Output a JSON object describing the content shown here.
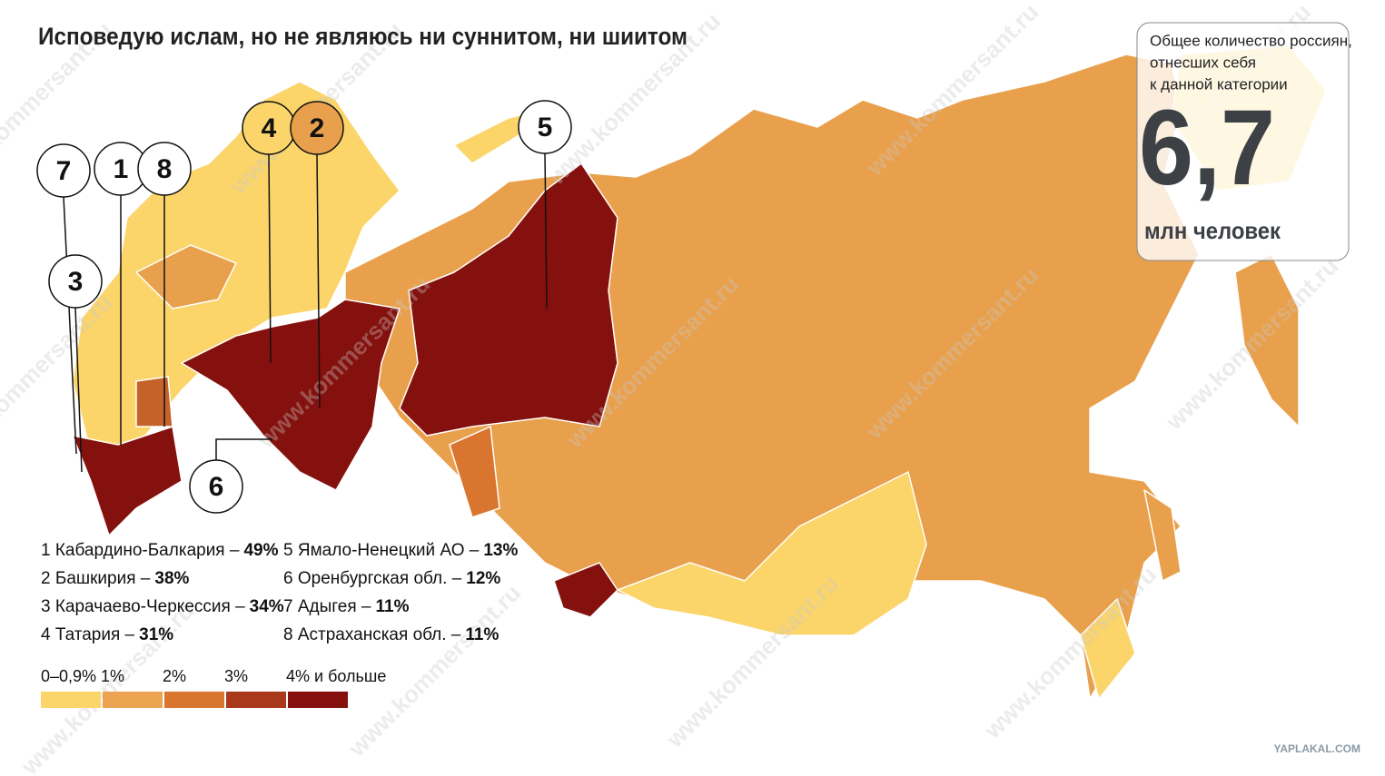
{
  "title": "Исповедую ислам, но не являюсь ни суннитом, ни шиитом",
  "summary": {
    "caption_lines": [
      "Общее количество россиян,",
      "отнесших себя",
      "к данной категории"
    ],
    "value": "6,7",
    "unit": "млн человек"
  },
  "callouts": [
    {
      "label": "7",
      "color": "#ffffff"
    },
    {
      "label": "1",
      "color": "#ffffff"
    },
    {
      "label": "8",
      "color": "#ffffff"
    },
    {
      "label": "3",
      "color": "#ffffff"
    },
    {
      "label": "4",
      "color": "#fbd56a"
    },
    {
      "label": "2",
      "color": "#e9a04c"
    },
    {
      "label": "5",
      "color": "#ffffff"
    },
    {
      "label": "6",
      "color": "#ffffff"
    }
  ],
  "regions": [
    {
      "label": "1 Кабардино-Балкария –",
      "value": "49%"
    },
    {
      "label": "2 Башкирия –",
      "value": "38%"
    },
    {
      "label": "3 Карачаево-Черкессия –",
      "value": "34%"
    },
    {
      "label": "4 Татария –",
      "value": "31%"
    },
    {
      "label": "5 Ямало-Ненецкий АО –",
      "value": "13%"
    },
    {
      "label": "6 Оренбургская обл. –",
      "value": "12%"
    },
    {
      "label": "7 Адыгея –",
      "value": "11%"
    },
    {
      "label": "8 Астраханская обл. –",
      "value": "11%"
    }
  ],
  "legend": [
    {
      "label": "0–0,9%",
      "color": "#fbd56a"
    },
    {
      "label": "1%",
      "color": "#eca452"
    },
    {
      "label": "2%",
      "color": "#d9752f"
    },
    {
      "label": "3%",
      "color": "#a8391a"
    },
    {
      "label": "4% и больше",
      "color": "#84110e"
    }
  ],
  "watermark": "www.kommersant.ru",
  "source": "YAPLAKAL.COM"
}
